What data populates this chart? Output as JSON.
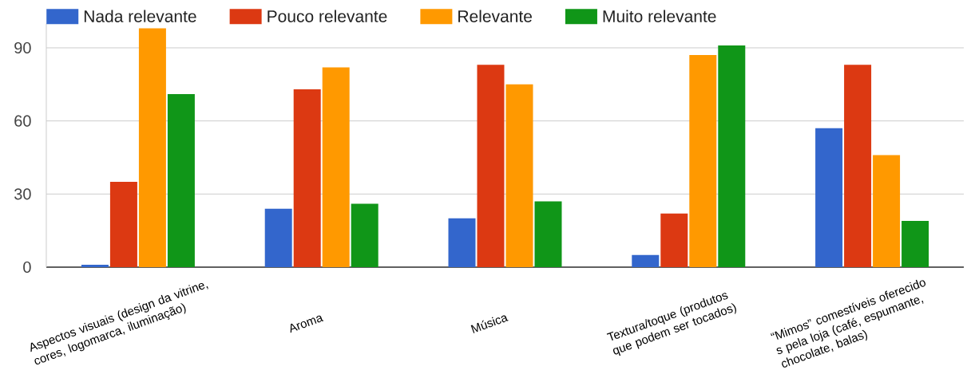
{
  "chart_data": {
    "type": "bar",
    "categories": [
      "Aspectos visuais (design da vitrine, cores, logomarca, iluminação)",
      "Aroma",
      "Música",
      "Textura/toque (produtos que podem ser tocados)",
      "“Mimos” comestíveis oferecido s pela loja (café, espumante, chocolate, balas)"
    ],
    "series": [
      {
        "name": "Nada relevante",
        "color": "#3366cc",
        "values": [
          1,
          24,
          20,
          5,
          57
        ]
      },
      {
        "name": "Pouco relevante",
        "color": "#dc3912",
        "values": [
          35,
          73,
          83,
          22,
          83
        ]
      },
      {
        "name": "Relevante",
        "color": "#ff9900",
        "values": [
          98,
          82,
          75,
          87,
          46
        ]
      },
      {
        "name": "Muito relevante",
        "color": "#109618",
        "values": [
          71,
          26,
          27,
          91,
          19
        ]
      }
    ],
    "ylim": [
      0,
      100
    ],
    "yticks": [
      0,
      30,
      60,
      90
    ],
    "grid": "y",
    "legend": "top left"
  }
}
